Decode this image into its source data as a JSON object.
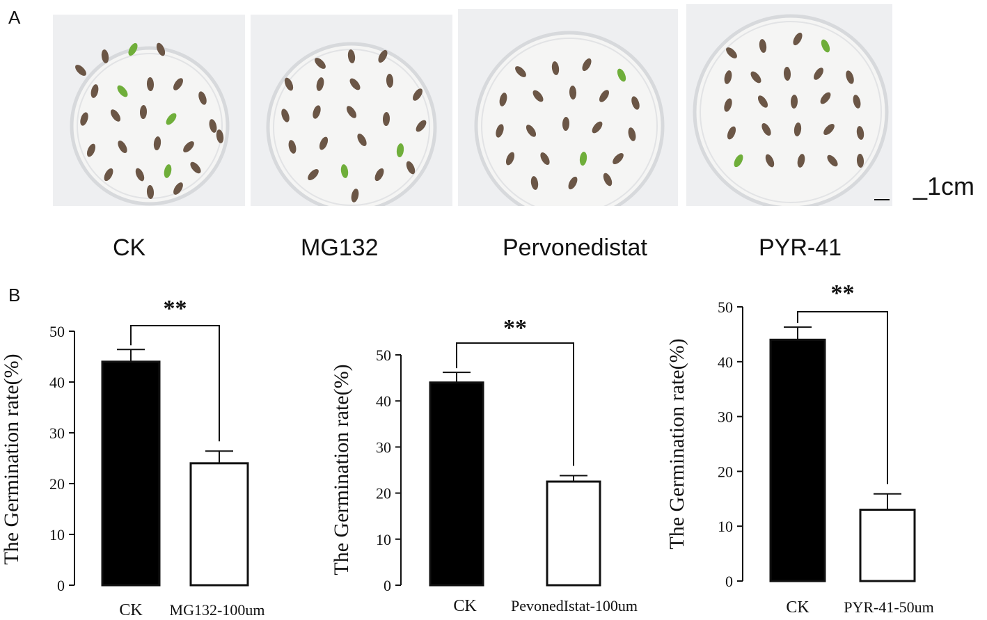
{
  "figure": {
    "panel_a_letter": "A",
    "panel_b_letter": "B",
    "photo_labels": [
      "CK",
      "MG132",
      "Pervonedistat",
      "PYR-41"
    ],
    "scale_label": "_1cm",
    "colors": {
      "ck_bar": "#000000",
      "treatment_bar": "#ffffff",
      "dish_bg": "#eeeff1",
      "seed": "#6b5646",
      "seedling": "#6fae3a"
    }
  },
  "chart_data": [
    {
      "type": "bar",
      "categories": [
        "CK",
        "MG132-100um"
      ],
      "values": [
        44,
        24
      ],
      "errors": [
        2.4,
        2.4
      ],
      "ylabel": "The Germination rate(%)",
      "ylim": [
        0,
        50
      ],
      "yticks": [
        "0",
        "10",
        "20",
        "30",
        "40",
        "50"
      ],
      "significance": "**",
      "grid": false
    },
    {
      "type": "bar",
      "categories": [
        "CK",
        "PevonedIstat-100um"
      ],
      "values": [
        44,
        22.5
      ],
      "errors": [
        2.2,
        1.3
      ],
      "ylabel": "The Germination rate(%)",
      "ylim": [
        0,
        50
      ],
      "yticks": [
        "0",
        "10",
        "20",
        "30",
        "40",
        "50"
      ],
      "significance": "**",
      "grid": false
    },
    {
      "type": "bar",
      "categories": [
        "CK",
        "PYR-41-50um"
      ],
      "values": [
        44,
        13
      ],
      "errors": [
        2.3,
        2.9
      ],
      "ylabel": "The Germination rate(%)",
      "ylim": [
        0,
        50
      ],
      "yticks": [
        "0",
        "10",
        "20",
        "30",
        "40",
        "50"
      ],
      "significance": "**",
      "grid": false
    }
  ]
}
